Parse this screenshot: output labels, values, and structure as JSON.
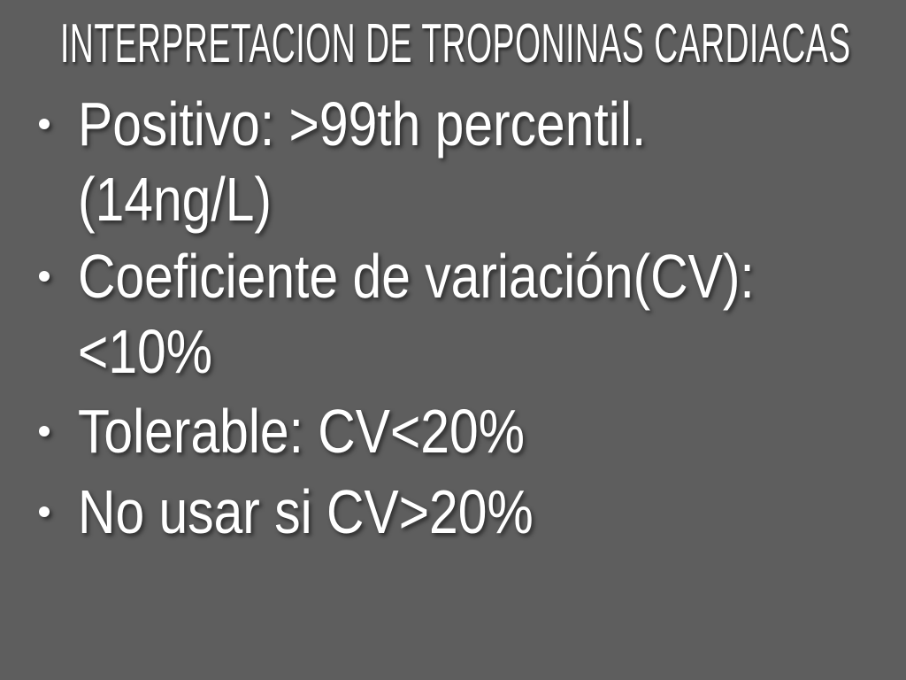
{
  "slide": {
    "title": "INTERPRETACION DE TROPONINAS CARDIACAS",
    "bullets": [
      {
        "lines": [
          "Positivo: >99th percentil.",
          "(14ng/L)"
        ]
      },
      {
        "lines": [
          "Coeficiente de variación(CV):",
          "<10%"
        ]
      },
      {
        "lines": [
          "Tolerable: CV<20%"
        ]
      },
      {
        "lines": [
          "No usar si CV>20%"
        ]
      }
    ]
  }
}
